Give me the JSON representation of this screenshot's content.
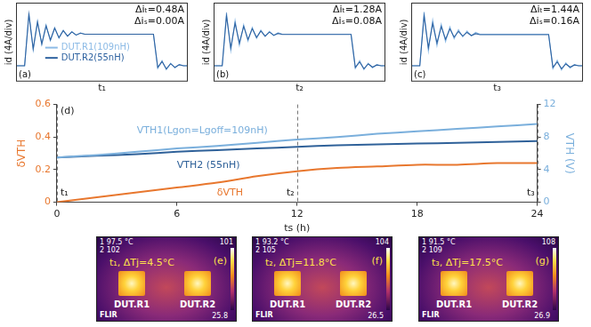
{
  "chart_data": [
    {
      "type": "line",
      "panel_label": "(a)",
      "xlabel": "t₁",
      "ylabel": "id (4A/div)",
      "xlim": [
        0,
        40
      ],
      "ylim": [
        -6,
        24
      ],
      "tick_labels": false,
      "grid": false,
      "legend": "bottom",
      "x": [
        0,
        1,
        2,
        3,
        4,
        5,
        6,
        7,
        8,
        9,
        10,
        11,
        12,
        13,
        14,
        15,
        16,
        17,
        18,
        19,
        20,
        21,
        22,
        23,
        24,
        25,
        26,
        27,
        28,
        29,
        30,
        31,
        32,
        33,
        34,
        35,
        36,
        37,
        38,
        39,
        40
      ],
      "series": [
        {
          "name": "DUT.R1(109nH)",
          "color": "#8dbbe6",
          "values": [
            0,
            0,
            0,
            20,
            6,
            17,
            8,
            15.5,
            9.5,
            14.5,
            10.5,
            13.5,
            11.2,
            13,
            11.6,
            12.5,
            12,
            12,
            12,
            12,
            12,
            12,
            12,
            12,
            12,
            12,
            12,
            12,
            12,
            12,
            12,
            12,
            12,
            -1,
            2,
            -1.5,
            1,
            -0.8,
            0.5,
            0,
            0
          ]
        },
        {
          "name": "DUT.R2(55nH)",
          "color": "#2e62a0",
          "values": [
            0,
            0,
            0,
            19.52,
            6.5,
            16.6,
            8.3,
            15.2,
            9.8,
            14.3,
            10.7,
            13.4,
            11.3,
            12.9,
            11.7,
            12.4,
            12,
            12,
            12,
            12,
            12,
            12,
            12,
            12,
            12,
            12,
            12,
            12,
            12,
            12,
            12,
            12,
            12,
            -0.6,
            1.6,
            -1.2,
            0.8,
            -0.6,
            0.4,
            0,
            0
          ]
        }
      ],
      "annotations": [
        "Δiₜ=0.48A",
        "Δiₛ=0.00A"
      ]
    },
    {
      "type": "line",
      "panel_label": "(b)",
      "xlabel": "t₂",
      "ylabel": "id (4A/div)",
      "xlim": [
        0,
        40
      ],
      "ylim": [
        -6,
        24
      ],
      "tick_labels": false,
      "grid": false,
      "x": [
        0,
        1,
        2,
        3,
        4,
        5,
        6,
        7,
        8,
        9,
        10,
        11,
        12,
        13,
        14,
        15,
        16,
        17,
        18,
        19,
        20,
        21,
        22,
        23,
        24,
        25,
        26,
        27,
        28,
        29,
        30,
        31,
        32,
        33,
        34,
        35,
        36,
        37,
        38,
        39,
        40
      ],
      "series": [
        {
          "name": "DUT.R1(109nH)",
          "color": "#8dbbe6",
          "values": [
            0,
            0,
            0,
            20.2,
            5.8,
            17.2,
            7.8,
            15.6,
            9.4,
            14.6,
            10.4,
            13.6,
            11.1,
            13.1,
            11.5,
            12.6,
            12,
            12,
            12,
            12,
            12,
            12,
            12,
            12,
            12,
            12,
            12,
            12,
            12,
            12,
            12,
            12,
            12,
            -1,
            2,
            -1.5,
            1,
            -0.8,
            0.5,
            0,
            0
          ]
        },
        {
          "name": "DUT.R2(55nH)",
          "color": "#2e62a0",
          "values": [
            0,
            0,
            0,
            18.92,
            6.8,
            16.2,
            8.6,
            15,
            10,
            14.1,
            10.8,
            13.2,
            11.3,
            12.8,
            11.6,
            12.3,
            11.92,
            11.92,
            11.92,
            11.92,
            11.92,
            11.92,
            11.92,
            11.92,
            11.92,
            11.92,
            11.92,
            11.92,
            11.92,
            11.92,
            11.92,
            11.92,
            11.92,
            -0.6,
            1.5,
            -1.1,
            0.7,
            -0.5,
            0.3,
            0,
            0
          ]
        }
      ],
      "annotations": [
        "Δiₜ=1.28A",
        "Δiₛ=0.08A"
      ]
    },
    {
      "type": "line",
      "panel_label": "(c)",
      "xlabel": "t₃",
      "ylabel": "id (4A/div)",
      "xlim": [
        0,
        40
      ],
      "ylim": [
        -6,
        24
      ],
      "tick_labels": false,
      "grid": false,
      "x": [
        0,
        1,
        2,
        3,
        4,
        5,
        6,
        7,
        8,
        9,
        10,
        11,
        12,
        13,
        14,
        15,
        16,
        17,
        18,
        19,
        20,
        21,
        22,
        23,
        24,
        25,
        26,
        27,
        28,
        29,
        30,
        31,
        32,
        33,
        34,
        35,
        36,
        37,
        38,
        39,
        40
      ],
      "series": [
        {
          "name": "DUT.R1(109nH)",
          "color": "#8dbbe6",
          "values": [
            0,
            0,
            0,
            20.4,
            5.6,
            17.4,
            7.6,
            15.8,
            9.2,
            14.8,
            10.3,
            13.7,
            11,
            13.2,
            11.4,
            12.7,
            12,
            12,
            12,
            12,
            12,
            12,
            12,
            12,
            12,
            12,
            12,
            12,
            12,
            12,
            12,
            12,
            12,
            -1.1,
            2.1,
            -1.6,
            1.1,
            -0.9,
            0.5,
            0,
            0
          ]
        },
        {
          "name": "DUT.R2(55nH)",
          "color": "#2e62a0",
          "values": [
            0,
            0,
            0,
            18.96,
            6.9,
            16.1,
            8.7,
            14.9,
            10.1,
            14,
            10.9,
            13.1,
            11.3,
            12.7,
            11.5,
            12.2,
            11.84,
            11.84,
            11.84,
            11.84,
            11.84,
            11.84,
            11.84,
            11.84,
            11.84,
            11.84,
            11.84,
            11.84,
            11.84,
            11.84,
            11.84,
            11.84,
            11.84,
            -0.6,
            1.5,
            -1.1,
            0.7,
            -0.5,
            0.3,
            0,
            0
          ]
        }
      ],
      "annotations": [
        "Δiₜ=1.44A",
        "Δiₛ=0.16A"
      ]
    },
    {
      "type": "line",
      "panel_label": "(d)",
      "xlabel": "ts (h)",
      "ylabel": "δVTH",
      "y2label": "VTH (V)",
      "x": [
        0,
        2,
        4,
        6,
        8,
        10,
        12,
        14,
        16,
        18,
        20,
        22,
        24
      ],
      "xlim": [
        0,
        24
      ],
      "xticks": [
        0,
        6,
        12,
        18,
        24
      ],
      "ylim": [
        0,
        0.6
      ],
      "yticks": [
        0,
        0.2,
        0.4,
        0.6
      ],
      "y2lim": [
        0,
        12
      ],
      "y2ticks": [
        0,
        4,
        8,
        12
      ],
      "grid": false,
      "series": [
        {
          "name": "VTH1(Lgon=Lgoff=109nH)",
          "color": "#7aafdc",
          "axis": "y2",
          "values": [
            5.5,
            5.8,
            6.2,
            6.6,
            6.9,
            7.3,
            7.7,
            8.0,
            8.4,
            8.7,
            9.0,
            9.3,
            9.6
          ]
        },
        {
          "name": "VTH2 (55nH)",
          "color": "#2f6199",
          "axis": "y2",
          "values": [
            5.5,
            5.7,
            5.9,
            6.2,
            6.4,
            6.6,
            6.8,
            7.0,
            7.1,
            7.2,
            7.3,
            7.4,
            7.5
          ]
        },
        {
          "name": "δVTH",
          "color": "#e8772e",
          "values": [
            0,
            0.03,
            0.06,
            0.09,
            0.12,
            0.16,
            0.19,
            0.21,
            0.22,
            0.23,
            0.23,
            0.24,
            0.24
          ]
        }
      ],
      "markers": [
        {
          "x": 0,
          "label": "t₁"
        },
        {
          "x": 12,
          "label": "t₂"
        },
        {
          "x": 24,
          "label": "t₃"
        }
      ]
    }
  ],
  "thermal_images": [
    {
      "panel_label": "(e)",
      "caption": "t₁, ΔTj=4.5°C",
      "spot_readings": [
        "1 97.5 °C",
        "2 102"
      ],
      "scale_max": 101,
      "scale_min": 25.8,
      "devices": [
        "DUT.R1",
        "DUT.R2"
      ],
      "brand": "FLIR"
    },
    {
      "panel_label": "(f)",
      "caption": "t₂, ΔTj=11.8°C",
      "spot_readings": [
        "1 93.2 °C",
        "2 105"
      ],
      "scale_max": 104,
      "scale_min": 26.5,
      "devices": [
        "DUT.R1",
        "DUT.R2"
      ],
      "brand": "FLIR"
    },
    {
      "panel_label": "(g)",
      "caption": "t₃, ΔTj=17.5°C",
      "spot_readings": [
        "1 91.5 °C",
        "2 109"
      ],
      "scale_max": 108,
      "scale_min": 26.9,
      "devices": [
        "DUT.R1",
        "DUT.R2"
      ],
      "brand": "FLIR"
    }
  ]
}
